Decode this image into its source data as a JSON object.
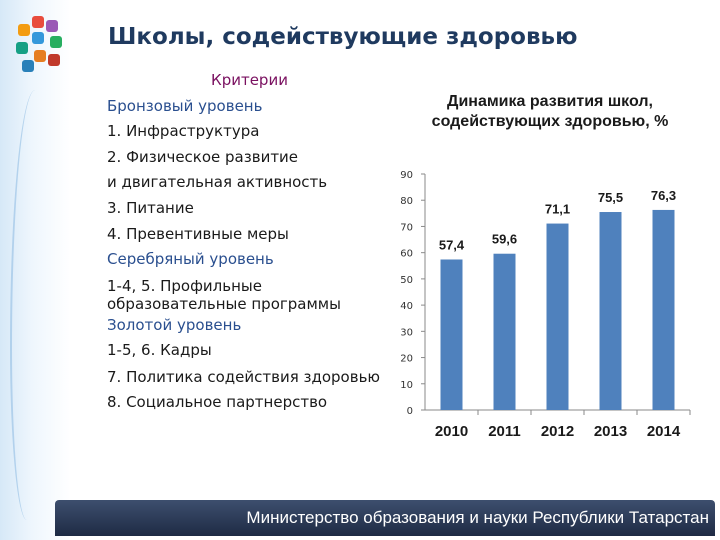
{
  "slide": {
    "title": "Школы, содействующие здоровью"
  },
  "criteria": {
    "heading": "Критерии",
    "lines": [
      "Бронзовый уровень",
      "1. Инфраструктура",
      "2. Физическое развитие",
      "и двигательная активность",
      "3. Питание",
      "4. Превентивные меры",
      "Серебряный уровень",
      "1-4, 5. Профильные образовательные программы",
      "Золотой уровень",
      "1-5, 6. Кадры",
      "7. Политика содействия здоровью",
      "8.  Социальное партнерство"
    ]
  },
  "chart_data": {
    "type": "bar",
    "title": "Динамика развития школ, содействующих здоровью, %",
    "categories": [
      "2010",
      "2011",
      "2012",
      "2013",
      "2014"
    ],
    "values": [
      57.4,
      59.6,
      71.1,
      75.5,
      76.3
    ],
    "value_labels": [
      "57,4",
      "59,6",
      "71,1",
      "75,5",
      "76,3"
    ],
    "yticks": [
      "0",
      "10",
      "20",
      "30",
      "40",
      "50",
      "60",
      "70",
      "80",
      "90"
    ],
    "ylim": [
      0,
      90
    ],
    "grid": false,
    "bar_color": "#4f81bd"
  },
  "footer": {
    "text": "Министерство образования и науки Республики Татарстан"
  }
}
